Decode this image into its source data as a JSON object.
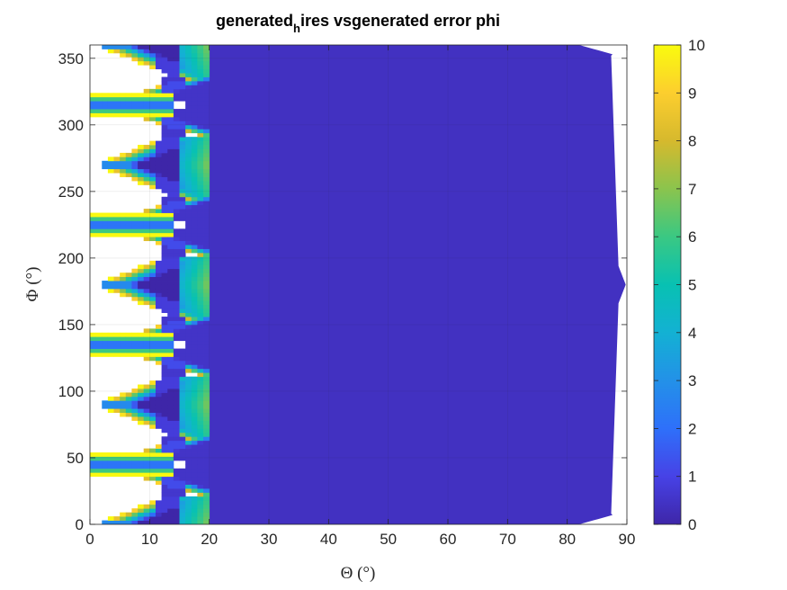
{
  "chart_data": {
    "type": "heatmap",
    "title": "generated",
    "title_sub": "h",
    "title_rest": "ires vsgenerated error phi",
    "xlabel": "Θ (°)",
    "ylabel": "Φ (°)",
    "xlim": [
      0,
      90
    ],
    "ylim": [
      0,
      360
    ],
    "xticks": [
      0,
      10,
      20,
      30,
      40,
      50,
      60,
      70,
      80,
      90
    ],
    "yticks": [
      0,
      50,
      100,
      150,
      200,
      250,
      300,
      350
    ],
    "colorbar": {
      "limits": [
        0,
        10
      ],
      "ticks": [
        0,
        1,
        2,
        3,
        4,
        5,
        6,
        7,
        8,
        9,
        10
      ],
      "colormap": "parula"
    },
    "background_value": 0.4,
    "structured_region_theta_max": 20,
    "symmetry_period_phi": 45,
    "white_gap_phi_centers": [
      45,
      135,
      225,
      315
    ],
    "grid": true,
    "colors": {
      "low": "#3e26a8",
      "high": "#f9fb0e",
      "axis": "#262626"
    }
  }
}
